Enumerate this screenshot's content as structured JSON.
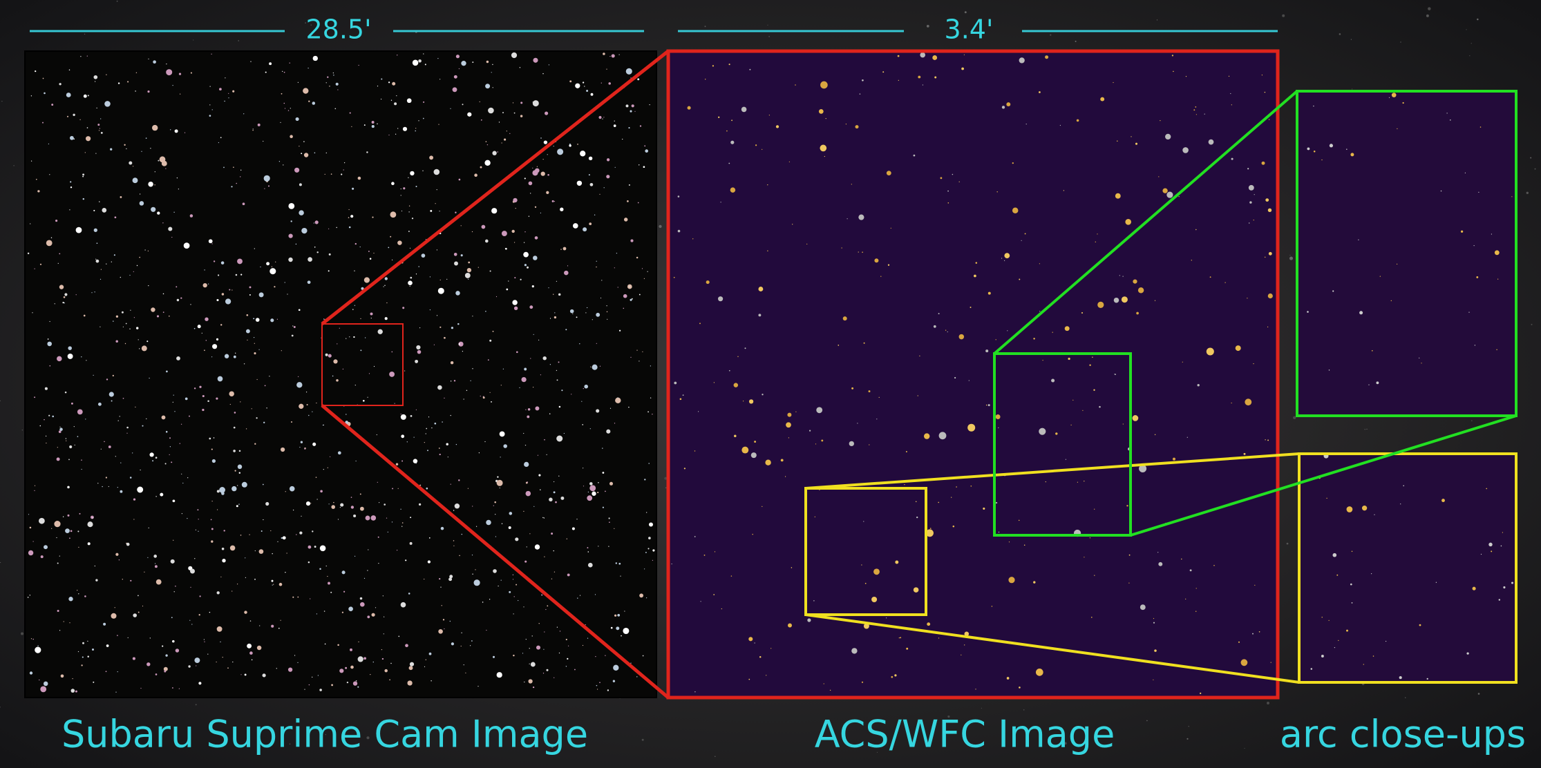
{
  "scale_bars": [
    "28.5'",
    "3.4'"
  ],
  "captions": [
    "Subaru Suprime Cam Image",
    "ACS/WFC Image",
    "arc close-ups"
  ]
}
